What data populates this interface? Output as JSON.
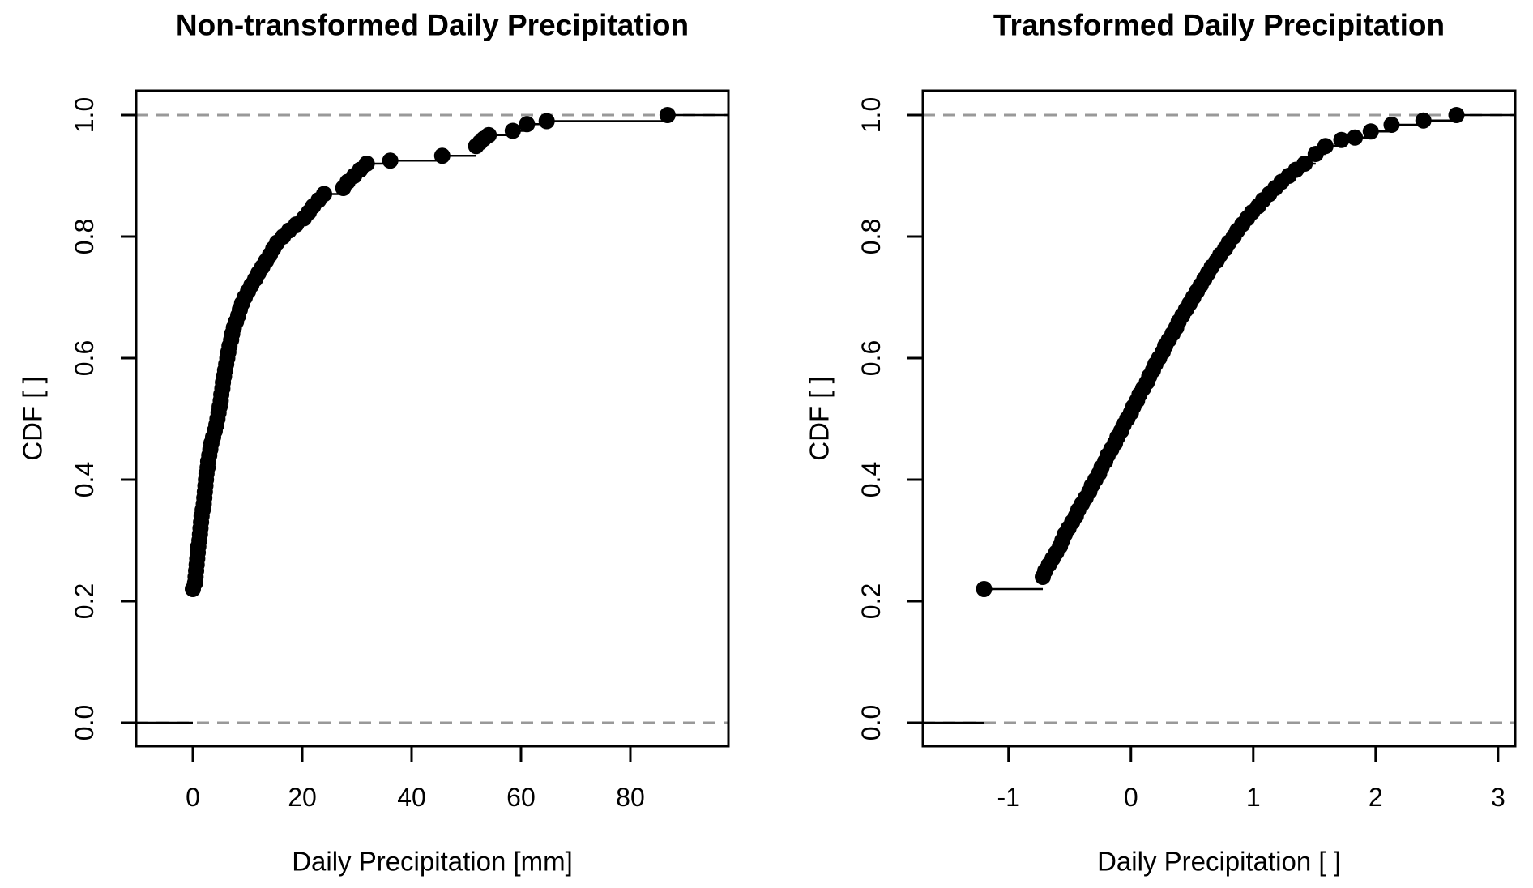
{
  "figure": {
    "background": "#ffffff",
    "point_color": "#000000",
    "step_line_color": "#000000",
    "box_color": "#000000",
    "ref_line_color": "#999999"
  },
  "chart_data": [
    {
      "type": "scatter",
      "subtype": "ecdf-step",
      "title": "Non-transformed Daily Precipitation",
      "xlabel": "Daily Precipitation [mm]",
      "ylabel": "CDF [ ]",
      "x_ticks": [
        0,
        20,
        40,
        60,
        80
      ],
      "x_tick_labels": [
        "0",
        "20",
        "40",
        "60",
        "80"
      ],
      "y_ticks": [
        0.0,
        0.2,
        0.4,
        0.6,
        0.8,
        1.0
      ],
      "y_tick_labels": [
        "0.0",
        "0.2",
        "0.4",
        "0.6",
        "0.8",
        "1.0"
      ],
      "xlim": [
        -10.37,
        97.93
      ],
      "ylim": [
        -0.0387,
        1.04
      ],
      "ref_lines_y": [
        0,
        1
      ],
      "grid": false,
      "legend": false,
      "points": [
        [
          0,
          0.22
        ],
        [
          0.4,
          0.23
        ],
        [
          0.5,
          0.24
        ],
        [
          0.6,
          0.25
        ],
        [
          0.7,
          0.26
        ],
        [
          0.8,
          0.27
        ],
        [
          0.9,
          0.28
        ],
        [
          1.0,
          0.29
        ],
        [
          1.2,
          0.3
        ],
        [
          1.3,
          0.31
        ],
        [
          1.4,
          0.32
        ],
        [
          1.5,
          0.33
        ],
        [
          1.6,
          0.34
        ],
        [
          1.8,
          0.35
        ],
        [
          2.0,
          0.36
        ],
        [
          2.1,
          0.37
        ],
        [
          2.2,
          0.38
        ],
        [
          2.3,
          0.39
        ],
        [
          2.4,
          0.4
        ],
        [
          2.5,
          0.41
        ],
        [
          2.7,
          0.42
        ],
        [
          2.8,
          0.43
        ],
        [
          3.0,
          0.44
        ],
        [
          3.2,
          0.45
        ],
        [
          3.4,
          0.46
        ],
        [
          3.7,
          0.47
        ],
        [
          4.0,
          0.48
        ],
        [
          4.3,
          0.49
        ],
        [
          4.5,
          0.5
        ],
        [
          4.7,
          0.51
        ],
        [
          4.9,
          0.52
        ],
        [
          5.1,
          0.53
        ],
        [
          5.2,
          0.54
        ],
        [
          5.4,
          0.55
        ],
        [
          5.5,
          0.56
        ],
        [
          5.7,
          0.57
        ],
        [
          5.9,
          0.58
        ],
        [
          6.1,
          0.59
        ],
        [
          6.3,
          0.6
        ],
        [
          6.5,
          0.61
        ],
        [
          6.7,
          0.62
        ],
        [
          7.0,
          0.63
        ],
        [
          7.2,
          0.64
        ],
        [
          7.5,
          0.65
        ],
        [
          7.9,
          0.66
        ],
        [
          8.3,
          0.67
        ],
        [
          8.6,
          0.68
        ],
        [
          9.0,
          0.69
        ],
        [
          9.5,
          0.7
        ],
        [
          10.1,
          0.71
        ],
        [
          10.7,
          0.72
        ],
        [
          11.4,
          0.73
        ],
        [
          12.0,
          0.74
        ],
        [
          12.7,
          0.75
        ],
        [
          13.4,
          0.76
        ],
        [
          14.1,
          0.77
        ],
        [
          14.7,
          0.78
        ],
        [
          15.4,
          0.79
        ],
        [
          16.5,
          0.8
        ],
        [
          17.6,
          0.81
        ],
        [
          18.9,
          0.82
        ],
        [
          20.3,
          0.83
        ],
        [
          21.2,
          0.84
        ],
        [
          22.0,
          0.85
        ],
        [
          23.0,
          0.86
        ],
        [
          24.0,
          0.87
        ],
        [
          27.5,
          0.88
        ],
        [
          28.3,
          0.89
        ],
        [
          29.5,
          0.9
        ],
        [
          30.6,
          0.91
        ],
        [
          31.8,
          0.92
        ],
        [
          36.1,
          0.925
        ],
        [
          45.6,
          0.933
        ],
        [
          51.8,
          0.949
        ],
        [
          52.5,
          0.955
        ],
        [
          53.2,
          0.961
        ],
        [
          54.1,
          0.967
        ],
        [
          58.5,
          0.974
        ],
        [
          61.1,
          0.985
        ],
        [
          64.7,
          0.99
        ],
        [
          86.8,
          1.0
        ]
      ]
    },
    {
      "type": "scatter",
      "subtype": "ecdf-step",
      "title": "Transformed Daily Precipitation",
      "xlabel": "Daily Precipitation [ ]",
      "ylabel": "CDF [ ]",
      "x_ticks": [
        -1,
        0,
        1,
        2,
        3
      ],
      "x_tick_labels": [
        "-1",
        "0",
        "1",
        "2",
        "3"
      ],
      "y_ticks": [
        0.0,
        0.2,
        0.4,
        0.6,
        0.8,
        1.0
      ],
      "y_tick_labels": [
        "0.0",
        "0.2",
        "0.4",
        "0.6",
        "0.8",
        "1.0"
      ],
      "xlim": [
        -1.7,
        3.14
      ],
      "ylim": [
        -0.0387,
        1.04
      ],
      "ref_lines_y": [
        0,
        1
      ],
      "grid": false,
      "legend": false,
      "points": [
        [
          -1.2,
          0.22
        ],
        [
          -0.72,
          0.24
        ],
        [
          -0.7,
          0.25
        ],
        [
          -0.67,
          0.26
        ],
        [
          -0.64,
          0.27
        ],
        [
          -0.61,
          0.28
        ],
        [
          -0.58,
          0.29
        ],
        [
          -0.56,
          0.3
        ],
        [
          -0.54,
          0.31
        ],
        [
          -0.51,
          0.32
        ],
        [
          -0.48,
          0.33
        ],
        [
          -0.45,
          0.34
        ],
        [
          -0.43,
          0.35
        ],
        [
          -0.4,
          0.36
        ],
        [
          -0.37,
          0.37
        ],
        [
          -0.34,
          0.38
        ],
        [
          -0.32,
          0.39
        ],
        [
          -0.29,
          0.4
        ],
        [
          -0.26,
          0.41
        ],
        [
          -0.24,
          0.42
        ],
        [
          -0.21,
          0.43
        ],
        [
          -0.19,
          0.44
        ],
        [
          -0.16,
          0.45
        ],
        [
          -0.13,
          0.46
        ],
        [
          -0.11,
          0.47
        ],
        [
          -0.08,
          0.48
        ],
        [
          -0.06,
          0.49
        ],
        [
          -0.03,
          0.5
        ],
        [
          0.0,
          0.51
        ],
        [
          0.02,
          0.52
        ],
        [
          0.05,
          0.53
        ],
        [
          0.07,
          0.54
        ],
        [
          0.1,
          0.55
        ],
        [
          0.13,
          0.56
        ],
        [
          0.15,
          0.57
        ],
        [
          0.18,
          0.58
        ],
        [
          0.2,
          0.59
        ],
        [
          0.23,
          0.6
        ],
        [
          0.26,
          0.61
        ],
        [
          0.28,
          0.62
        ],
        [
          0.31,
          0.63
        ],
        [
          0.34,
          0.64
        ],
        [
          0.37,
          0.65
        ],
        [
          0.39,
          0.66
        ],
        [
          0.42,
          0.67
        ],
        [
          0.45,
          0.68
        ],
        [
          0.48,
          0.69
        ],
        [
          0.51,
          0.7
        ],
        [
          0.54,
          0.71
        ],
        [
          0.57,
          0.72
        ],
        [
          0.6,
          0.73
        ],
        [
          0.63,
          0.74
        ],
        [
          0.66,
          0.75
        ],
        [
          0.7,
          0.76
        ],
        [
          0.73,
          0.77
        ],
        [
          0.77,
          0.78
        ],
        [
          0.8,
          0.79
        ],
        [
          0.84,
          0.8
        ],
        [
          0.87,
          0.81
        ],
        [
          0.91,
          0.82
        ],
        [
          0.95,
          0.83
        ],
        [
          0.99,
          0.84
        ],
        [
          1.04,
          0.85
        ],
        [
          1.08,
          0.86
        ],
        [
          1.13,
          0.87
        ],
        [
          1.18,
          0.88
        ],
        [
          1.23,
          0.89
        ],
        [
          1.29,
          0.9
        ],
        [
          1.35,
          0.91
        ],
        [
          1.42,
          0.92
        ],
        [
          1.51,
          0.936
        ],
        [
          1.59,
          0.949
        ],
        [
          1.72,
          0.959
        ],
        [
          1.83,
          0.963
        ],
        [
          1.96,
          0.973
        ],
        [
          2.13,
          0.984
        ],
        [
          2.39,
          0.991
        ],
        [
          2.66,
          1.0
        ]
      ]
    }
  ]
}
